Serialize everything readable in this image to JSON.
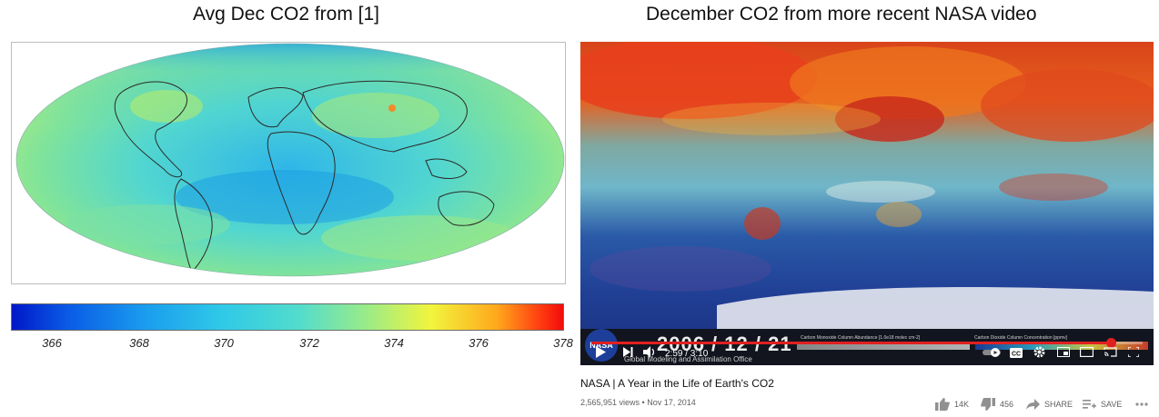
{
  "left_panel": {
    "title": "Avg Dec CO2 from [1]",
    "colorbar": {
      "ticks": [
        "366",
        "368",
        "370",
        "372",
        "374",
        "376",
        "378"
      ],
      "tick_values": [
        366,
        368,
        370,
        372,
        374,
        376,
        378
      ],
      "range": [
        365.6,
        378
      ]
    }
  },
  "right_panel": {
    "title": "December CO2 from more recent NASA video",
    "overlay": {
      "date": "2006 / 12 / 21",
      "producer": "Global Modeling and Assimilation Office",
      "co_scale_label": "Carbon Monoxide Column Abundance [1.0e18 molec cm-2]",
      "co2_scale_label": "Carbon Dioxide Column Concentration [ppmv]",
      "logo_text": "NASA"
    },
    "player": {
      "time": "2:59 / 3:10",
      "progress": 0.942,
      "cc_label": "CC"
    },
    "video": {
      "title": "NASA | A Year in the Life of Earth's CO2",
      "meta": "2,565,951 views • Nov 17, 2014",
      "likes": "14K",
      "dislikes": "456",
      "share_label": "SHARE",
      "save_label": "SAVE"
    }
  },
  "icons": [
    "play-icon",
    "next-icon",
    "volume-icon",
    "autoplay-toggle-icon",
    "captions-icon",
    "settings-icon",
    "miniplayer-icon",
    "theater-icon",
    "cast-icon",
    "fullscreen-icon",
    "like-icon",
    "dislike-icon",
    "share-icon",
    "save-icon",
    "more-icon"
  ],
  "colors": {
    "progress": "#e02020",
    "colorbar_low": "#0018c8",
    "colorbar_high": "#f20b0b"
  }
}
